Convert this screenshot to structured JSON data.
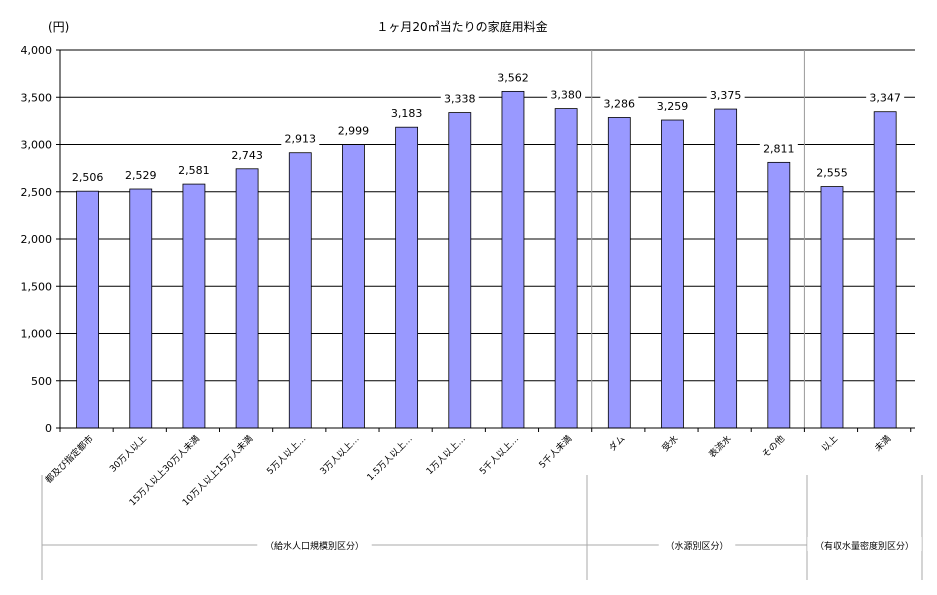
{
  "chart_data": {
    "type": "bar",
    "title": "１ヶ月20㎥当たりの家庭用料金",
    "ylabel": "(円)",
    "ylim": [
      0,
      4000
    ],
    "yticks": [
      0,
      500,
      1000,
      1500,
      2000,
      2500,
      3000,
      3500,
      4000
    ],
    "ytick_labels": [
      "0",
      "500",
      "1,000",
      "1,500",
      "2,000",
      "2,500",
      "3,000",
      "3,500",
      "4,000"
    ],
    "grid": true,
    "categories": [
      "都及び指定都市",
      "30万人以上",
      "15万人以上30万人未満",
      "10万人以上15万人未満",
      "5万人以上…",
      "3万人以上…",
      "1.5万人以上…",
      "1万人以上…",
      "5千人以上…",
      "5千人未満",
      "ダム",
      "受水",
      "表流水",
      "その他",
      "以上",
      "未満"
    ],
    "values": [
      2506,
      2529,
      2581,
      2743,
      2913,
      2999,
      3183,
      3338,
      3562,
      3380,
      3286,
      3259,
      3375,
      2811,
      2555,
      3347
    ],
    "value_labels": [
      "2,506",
      "2,529",
      "2,581",
      "2,743",
      "2,913",
      "2,999",
      "3,183",
      "3,338",
      "3,562",
      "3,380",
      "3,286",
      "3,259",
      "3,375",
      "2,811",
      "2,555",
      "3,347"
    ],
    "bar_color": "#9999ff",
    "groups": [
      {
        "label": "（給水人口規模別区分）"
      },
      {
        "label": "（水源別区分）"
      },
      {
        "label": "（有収水量密度別区分）"
      }
    ]
  }
}
